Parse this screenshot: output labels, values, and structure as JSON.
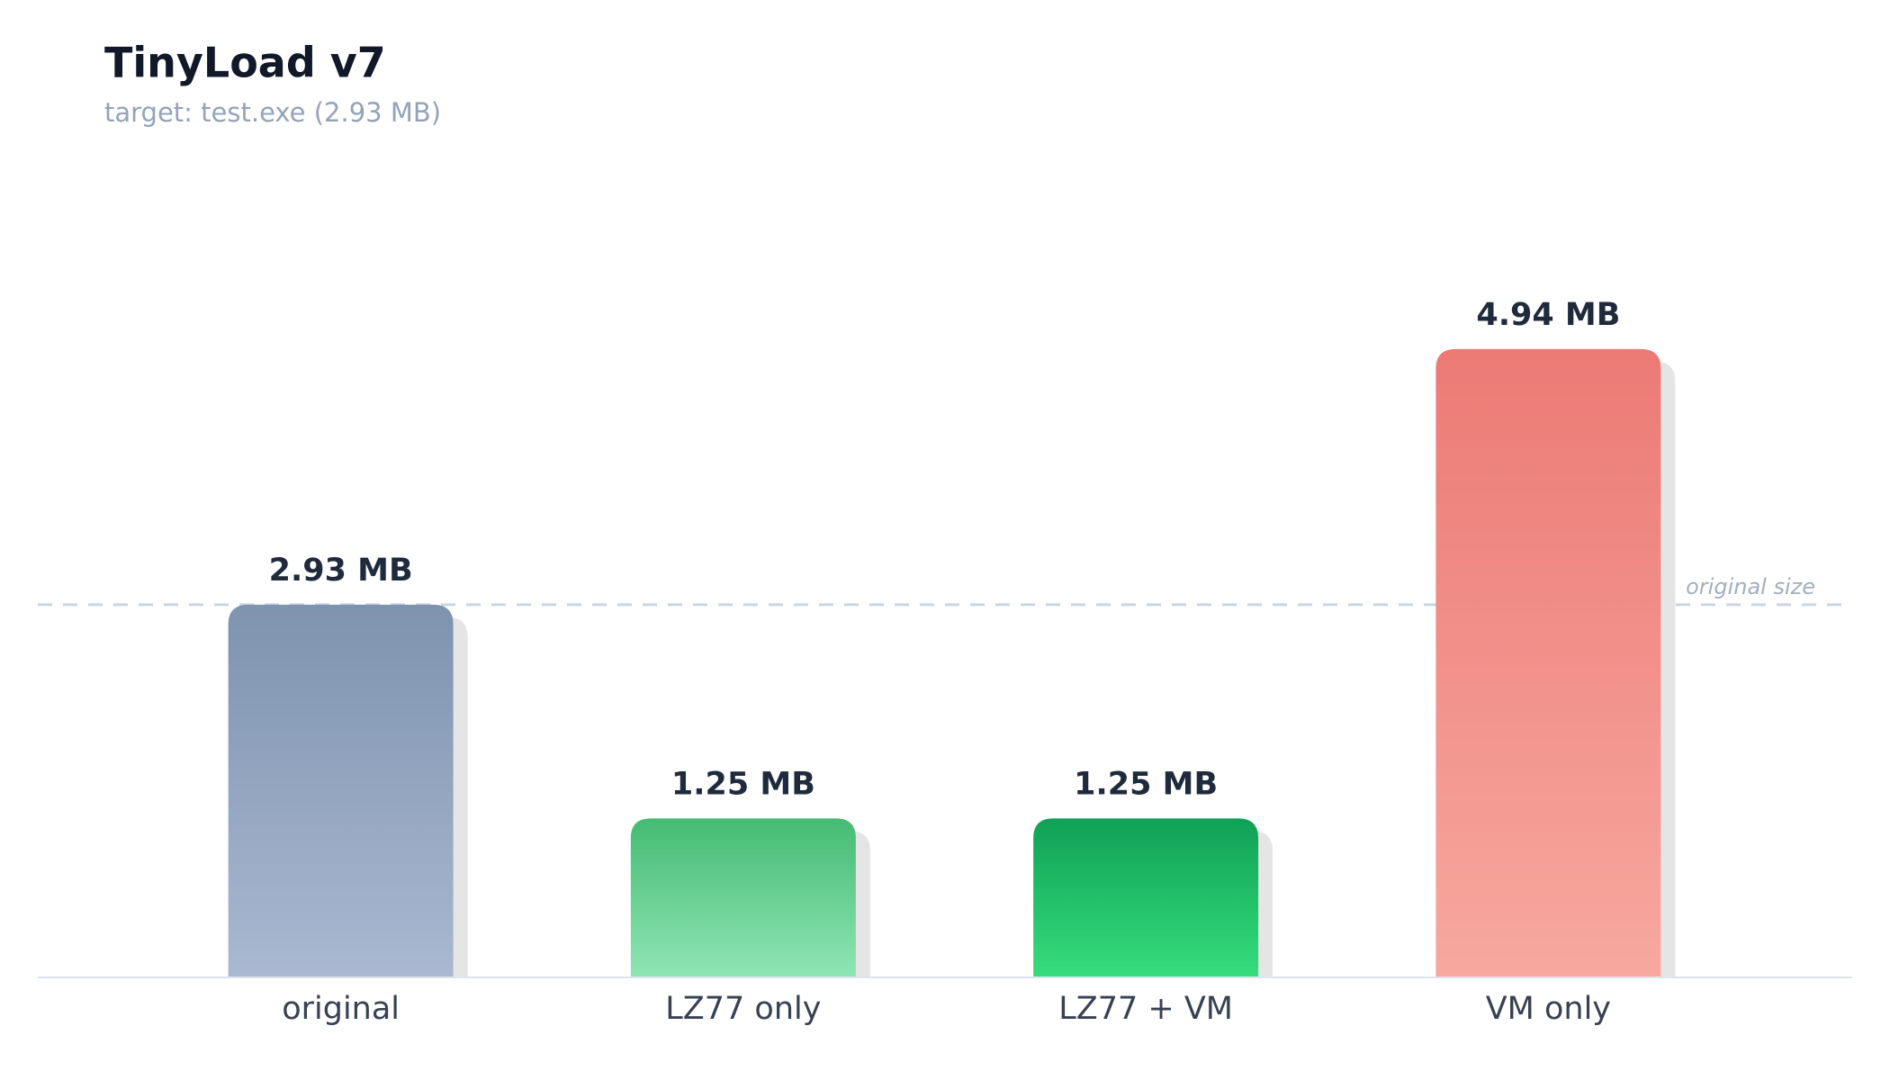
{
  "chart_data": {
    "type": "bar",
    "title": "TinyLoad v7",
    "subtitle": "target: test.exe (2.93 MB)",
    "categories": [
      "original",
      "LZ77 only",
      "LZ77 + VM",
      "VM only"
    ],
    "values": [
      2.93,
      1.25,
      1.25,
      4.94
    ],
    "value_labels": [
      "2.93 MB",
      "1.25 MB",
      "1.25 MB",
      "4.94 MB"
    ],
    "colors": [
      [
        "#7e93ae",
        "#aab8d1"
      ],
      [
        "#44bb72",
        "#8fe5b5"
      ],
      [
        "#0fa155",
        "#36dd7d"
      ],
      [
        "#ec7a75",
        "#f7a89f"
      ]
    ],
    "ylim": [
      0,
      6
    ],
    "reference": {
      "value": 2.93,
      "label": "original size"
    }
  }
}
